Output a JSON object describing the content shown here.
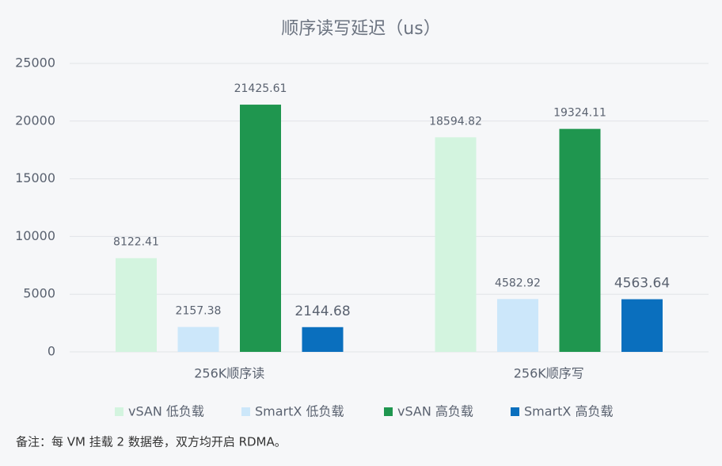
{
  "chart_data": {
    "type": "bar",
    "title": "顺序读写延迟（us）",
    "categories": [
      "256K顺序读",
      "256K顺序写"
    ],
    "series": [
      {
        "name": "vSAN 低负载",
        "color": "#d3f4df",
        "values": [
          8122.41,
          18594.82
        ]
      },
      {
        "name": "SmartX 低负载",
        "color": "#cce7fa",
        "values": [
          2157.38,
          4582.92
        ]
      },
      {
        "name": "vSAN 高负载",
        "color": "#1f964f",
        "values": [
          21425.61,
          19324.11
        ]
      },
      {
        "name": "SmartX 高负载",
        "color": "#0a6fbe",
        "values": [
          2144.68,
          4563.64
        ]
      }
    ],
    "ylim": [
      0,
      25000
    ],
    "yticks": [
      0,
      5000,
      10000,
      15000,
      20000,
      25000
    ],
    "grid": true,
    "note": "备注：每 VM 挂载 2 数据卷，双方均开启 RDMA。"
  }
}
